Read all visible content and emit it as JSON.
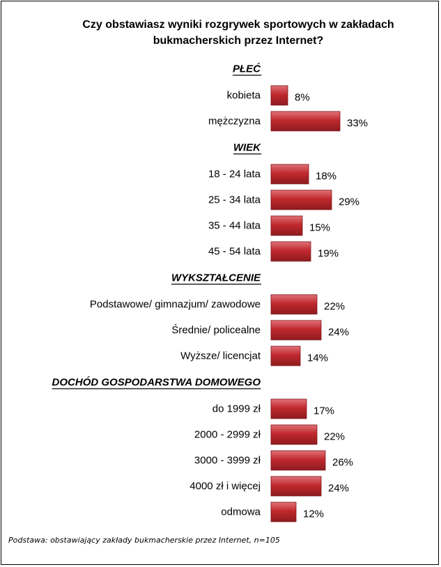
{
  "chart_data": {
    "type": "bar",
    "orientation": "horizontal",
    "title": "Czy obstawiasz wyniki rozgrywek sportowych w zakładach bukmacherskich przez Internet?",
    "bar_color": "#c0292e",
    "groups": [
      {
        "name": "PŁEĆ",
        "categories": [
          "kobieta",
          "mężczyzna"
        ],
        "values": [
          8,
          33
        ],
        "labels": [
          "8%",
          "33%"
        ]
      },
      {
        "name": "WIEK",
        "categories": [
          "18 - 24 lata",
          "25 - 34 lata",
          "35 - 44 lata",
          "45 - 54 lata"
        ],
        "values": [
          18,
          29,
          15,
          19
        ],
        "labels": [
          "18%",
          "29%",
          "15%",
          "19%"
        ]
      },
      {
        "name": "WYKSZTAŁCENIE",
        "categories": [
          "Podstawowe/ gimnazjum/ zawodowe",
          "Średnie/ policealne",
          "Wyższe/ licencjat"
        ],
        "values": [
          22,
          24,
          14
        ],
        "labels": [
          "22%",
          "24%",
          "14%"
        ]
      },
      {
        "name": "DOCHÓD GOSPODARSTWA DOMOWEGO",
        "categories": [
          "do 1999 zł",
          "2000 - 2999 zł",
          "3000 - 3999 zł",
          "4000 zł i więcej",
          "odmowa"
        ],
        "values": [
          17,
          22,
          26,
          24,
          12
        ],
        "labels": [
          "17%",
          "22%",
          "26%",
          "24%",
          "12%"
        ]
      }
    ],
    "footnote": "Podstawa: obstawiający zakłady bukmacherskie przez Internet, n=105"
  }
}
